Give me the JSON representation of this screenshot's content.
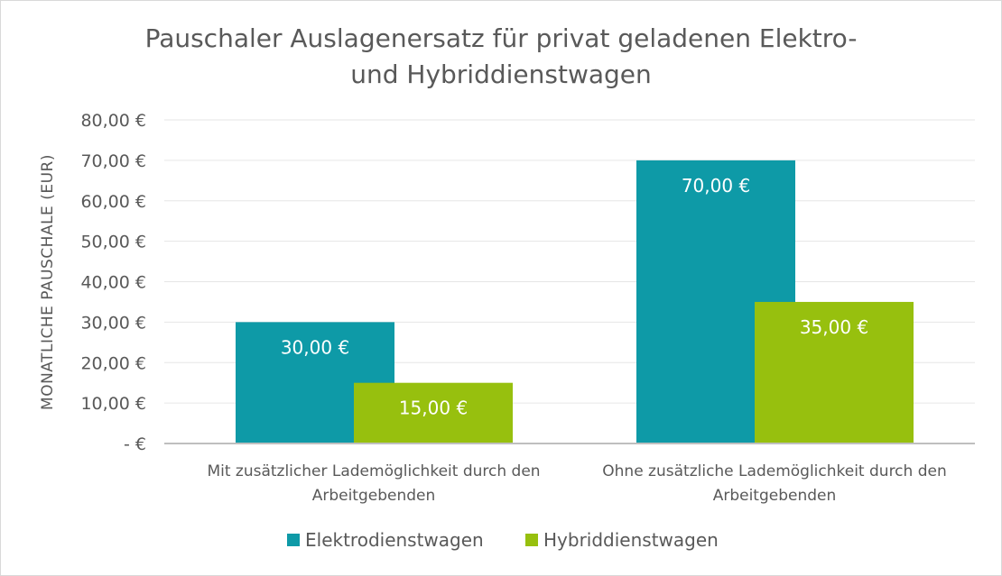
{
  "chart_data": {
    "type": "bar",
    "title_lines": [
      "Pauschaler Auslagenersatz für privat geladenen Elektro-",
      "und Hybriddienstwagen"
    ],
    "ylabel": "MONATLICHE PAUSCHALE (EUR)",
    "xlabel": "",
    "ylim": [
      0,
      80
    ],
    "ytick_values": [
      0,
      10,
      20,
      30,
      40,
      50,
      60,
      70,
      80
    ],
    "ytick_labels": [
      "-  €",
      "10,00 €",
      "20,00 €",
      "30,00 €",
      "40,00 €",
      "50,00 €",
      "60,00 €",
      "70,00 €",
      "80,00 €"
    ],
    "grid": true,
    "legend_position": "bottom",
    "categories": [
      [
        "Mit zusätzlicher Lademöglichkeit durch den",
        "Arbeitgebenden"
      ],
      [
        "Ohne zusätzliche Lademöglichkeit durch den",
        "Arbeitgebenden"
      ]
    ],
    "series": [
      {
        "name": "Elektrodienstwagen",
        "color": "#0e9aa7",
        "values": [
          30,
          70
        ],
        "labels": [
          "30,00 €",
          "70,00 €"
        ]
      },
      {
        "name": "Hybriddienstwagen",
        "color": "#97c00e",
        "values": [
          15,
          35
        ],
        "labels": [
          "15,00 €",
          "35,00 €"
        ]
      }
    ]
  }
}
